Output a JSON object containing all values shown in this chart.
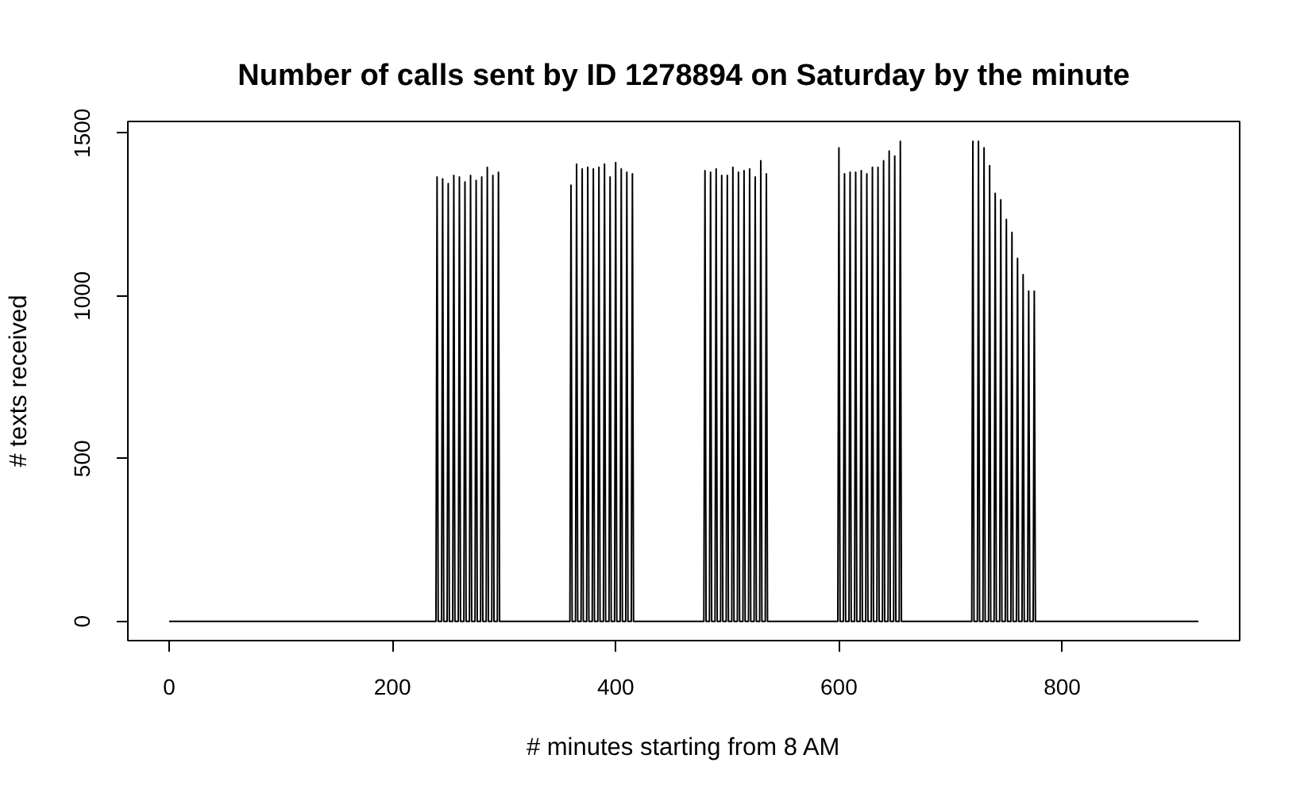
{
  "chart_data": {
    "type": "line",
    "title": "Number of calls sent by ID 1278894 on Saturday by the minute",
    "xlabel": "# minutes starting from 8 AM",
    "ylabel": "# texts received",
    "color": "#000000",
    "line_style": "solid",
    "x": [
      0,
      239,
      240,
      241,
      244,
      245,
      246,
      249,
      250,
      251,
      254,
      255,
      256,
      259,
      260,
      261,
      264,
      265,
      266,
      269,
      270,
      271,
      274,
      275,
      276,
      279,
      280,
      281,
      284,
      285,
      286,
      289,
      290,
      291,
      294,
      295,
      296,
      359,
      360,
      361,
      364,
      365,
      366,
      369,
      370,
      371,
      374,
      375,
      376,
      379,
      380,
      381,
      384,
      385,
      386,
      389,
      390,
      391,
      394,
      395,
      396,
      399,
      400,
      401,
      404,
      405,
      406,
      409,
      410,
      411,
      414,
      415,
      416,
      479,
      480,
      481,
      484,
      485,
      486,
      489,
      490,
      491,
      494,
      495,
      496,
      499,
      500,
      501,
      504,
      505,
      506,
      509,
      510,
      511,
      514,
      515,
      516,
      519,
      520,
      521,
      524,
      525,
      526,
      529,
      530,
      531,
      534,
      535,
      536,
      599,
      600,
      601,
      604,
      605,
      606,
      609,
      610,
      611,
      614,
      615,
      616,
      619,
      620,
      621,
      624,
      625,
      626,
      629,
      630,
      631,
      634,
      635,
      636,
      639,
      640,
      641,
      644,
      645,
      646,
      649,
      650,
      651,
      654,
      655,
      656,
      719,
      720,
      721,
      724,
      725,
      726,
      729,
      730,
      731,
      734,
      735,
      736,
      739,
      740,
      741,
      744,
      745,
      746,
      749,
      750,
      751,
      754,
      755,
      756,
      759,
      760,
      761,
      764,
      765,
      766,
      769,
      770,
      771,
      774,
      775,
      776,
      922
    ],
    "values": [
      0,
      0,
      1365,
      0,
      0,
      1360,
      0,
      0,
      1345,
      0,
      0,
      1370,
      0,
      0,
      1365,
      0,
      0,
      1350,
      0,
      0,
      1370,
      0,
      0,
      1355,
      0,
      0,
      1365,
      0,
      0,
      1395,
      0,
      0,
      1370,
      0,
      0,
      1380,
      0,
      0,
      1340,
      0,
      0,
      1405,
      0,
      0,
      1390,
      0,
      0,
      1395,
      0,
      0,
      1390,
      0,
      0,
      1395,
      0,
      0,
      1405,
      0,
      0,
      1365,
      0,
      0,
      1410,
      0,
      0,
      1390,
      0,
      0,
      1380,
      0,
      0,
      1375,
      0,
      0,
      1385,
      0,
      0,
      1380,
      0,
      0,
      1390,
      0,
      0,
      1370,
      0,
      0,
      1370,
      0,
      0,
      1395,
      0,
      0,
      1380,
      0,
      0,
      1385,
      0,
      0,
      1390,
      0,
      0,
      1365,
      0,
      0,
      1415,
      0,
      0,
      1375,
      0,
      0,
      1455,
      0,
      0,
      1375,
      0,
      0,
      1380,
      0,
      0,
      1380,
      0,
      0,
      1385,
      0,
      0,
      1375,
      0,
      0,
      1395,
      0,
      0,
      1395,
      0,
      0,
      1415,
      0,
      0,
      1445,
      0,
      0,
      1430,
      0,
      0,
      1475,
      0,
      0,
      1475,
      0,
      0,
      1475,
      0,
      0,
      1455,
      0,
      0,
      1400,
      0,
      0,
      1315,
      0,
      0,
      1295,
      0,
      0,
      1235,
      0,
      0,
      1195,
      0,
      0,
      1115,
      0,
      0,
      1065,
      0,
      0,
      1015,
      0,
      0,
      1015,
      0,
      0
    ],
    "xlim": [
      -37,
      959
    ],
    "xticks": [
      0,
      200,
      400,
      600,
      800
    ],
    "ylim": [
      -59,
      1536
    ],
    "yticks": [
      0,
      500,
      1000,
      1500
    ]
  }
}
